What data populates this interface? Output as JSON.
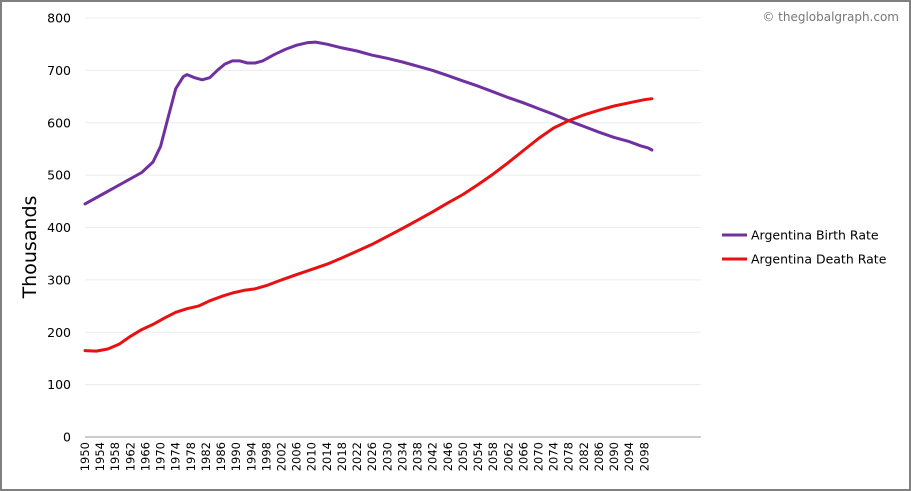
{
  "credit": "© theglobalgraph.com",
  "chart_data": {
    "type": "line",
    "ylabel": "Thousands",
    "ylim": [
      0,
      800
    ],
    "yticks": [
      0,
      100,
      200,
      300,
      400,
      500,
      600,
      700,
      800
    ],
    "xlim": [
      1950,
      2113
    ],
    "xticks": [
      1950,
      1954,
      1958,
      1962,
      1966,
      1970,
      1974,
      1978,
      1982,
      1986,
      1990,
      1994,
      1998,
      2002,
      2006,
      2010,
      2014,
      2018,
      2022,
      2026,
      2030,
      2034,
      2038,
      2042,
      2046,
      2050,
      2054,
      2058,
      2062,
      2066,
      2070,
      2074,
      2078,
      2082,
      2086,
      2090,
      2094,
      2098
    ],
    "grid": true,
    "legend_position": "right",
    "series": [
      {
        "name": "Argentina Birth Rate",
        "color": "#7030a0",
        "points": [
          [
            1950,
            445
          ],
          [
            1955,
            465
          ],
          [
            1960,
            485
          ],
          [
            1965,
            505
          ],
          [
            1968,
            525
          ],
          [
            1970,
            555
          ],
          [
            1972,
            610
          ],
          [
            1974,
            665
          ],
          [
            1976,
            688
          ],
          [
            1977,
            692
          ],
          [
            1979,
            686
          ],
          [
            1981,
            682
          ],
          [
            1983,
            686
          ],
          [
            1985,
            700
          ],
          [
            1987,
            712
          ],
          [
            1989,
            718
          ],
          [
            1991,
            718
          ],
          [
            1993,
            714
          ],
          [
            1995,
            714
          ],
          [
            1997,
            718
          ],
          [
            2000,
            730
          ],
          [
            2003,
            740
          ],
          [
            2006,
            748
          ],
          [
            2009,
            753
          ],
          [
            2011,
            754
          ],
          [
            2014,
            750
          ],
          [
            2018,
            743
          ],
          [
            2022,
            737
          ],
          [
            2026,
            729
          ],
          [
            2030,
            723
          ],
          [
            2034,
            716
          ],
          [
            2038,
            708
          ],
          [
            2042,
            700
          ],
          [
            2046,
            690
          ],
          [
            2050,
            680
          ],
          [
            2054,
            670
          ],
          [
            2058,
            659
          ],
          [
            2062,
            648
          ],
          [
            2066,
            638
          ],
          [
            2070,
            627
          ],
          [
            2074,
            616
          ],
          [
            2078,
            604
          ],
          [
            2082,
            593
          ],
          [
            2086,
            582
          ],
          [
            2090,
            572
          ],
          [
            2094,
            564
          ],
          [
            2097,
            556
          ],
          [
            2099,
            552
          ],
          [
            2100,
            548
          ]
        ]
      },
      {
        "name": "Argentina Death Rate",
        "color": "#e81010",
        "points": [
          [
            1950,
            165
          ],
          [
            1953,
            164
          ],
          [
            1956,
            168
          ],
          [
            1959,
            177
          ],
          [
            1962,
            192
          ],
          [
            1965,
            205
          ],
          [
            1968,
            215
          ],
          [
            1971,
            227
          ],
          [
            1974,
            238
          ],
          [
            1977,
            245
          ],
          [
            1980,
            250
          ],
          [
            1983,
            260
          ],
          [
            1986,
            268
          ],
          [
            1989,
            275
          ],
          [
            1992,
            280
          ],
          [
            1995,
            283
          ],
          [
            1998,
            289
          ],
          [
            2002,
            300
          ],
          [
            2006,
            310
          ],
          [
            2010,
            320
          ],
          [
            2014,
            330
          ],
          [
            2018,
            342
          ],
          [
            2022,
            355
          ],
          [
            2026,
            368
          ],
          [
            2030,
            383
          ],
          [
            2034,
            398
          ],
          [
            2038,
            414
          ],
          [
            2042,
            430
          ],
          [
            2046,
            447
          ],
          [
            2050,
            463
          ],
          [
            2054,
            482
          ],
          [
            2058,
            502
          ],
          [
            2062,
            524
          ],
          [
            2066,
            547
          ],
          [
            2070,
            570
          ],
          [
            2074,
            590
          ],
          [
            2078,
            604
          ],
          [
            2082,
            615
          ],
          [
            2086,
            624
          ],
          [
            2090,
            632
          ],
          [
            2094,
            638
          ],
          [
            2098,
            644
          ],
          [
            2100,
            646
          ]
        ]
      }
    ]
  }
}
